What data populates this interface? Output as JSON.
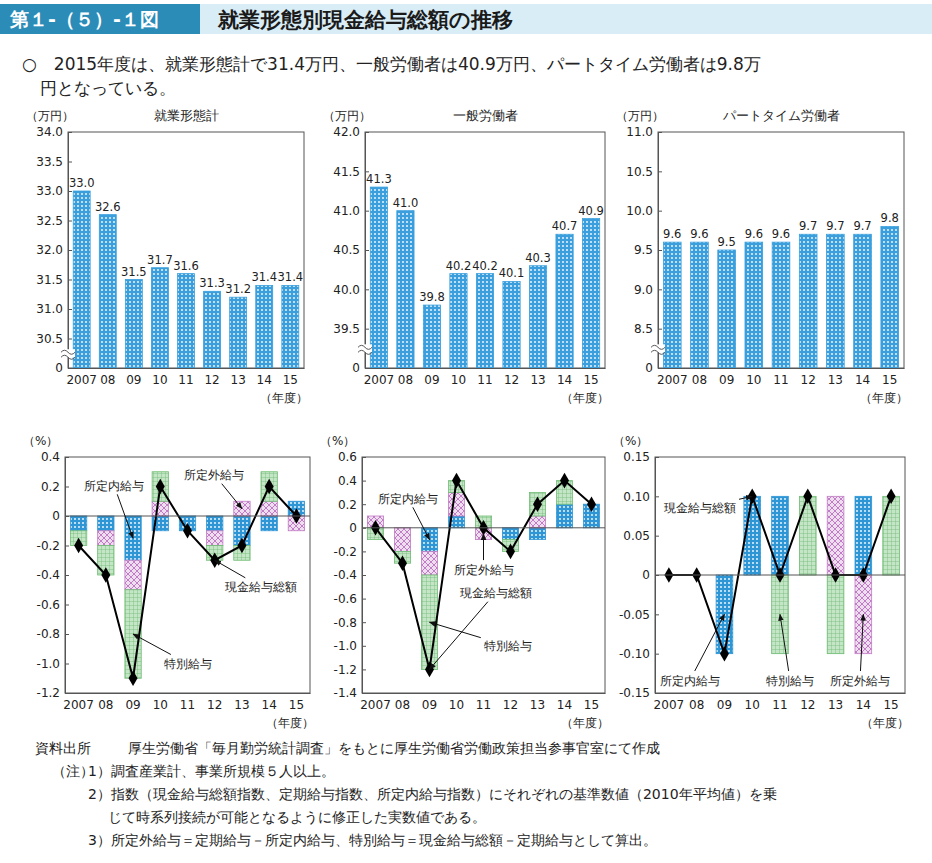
{
  "header": {
    "label": "第１-（５）-１図",
    "title": "就業形態別現金給与総額の推移",
    "summary": [
      "○　2015年度は、就業形態計で31.4万円、一般労働者は40.9万円、パートタイム労働者は9.8万",
      "円となっている。"
    ]
  },
  "chart_data": [
    {
      "type": "bar",
      "title": "就業形態計",
      "y_label": "（万円）",
      "x_label": "（年度）",
      "categories": [
        "2007",
        "08",
        "09",
        "10",
        "11",
        "12",
        "13",
        "14",
        "15"
      ],
      "values": [
        33.0,
        32.6,
        31.5,
        31.7,
        31.6,
        31.3,
        31.2,
        31.4,
        31.4
      ],
      "value_labels": [
        "33.0",
        "32.6",
        "31.5",
        "31.7",
        "31.6",
        "31.3",
        "31.2",
        "31.4",
        "31.4"
      ],
      "data_labels": true,
      "color": "#3a9fdc",
      "ylim": [
        0,
        34
      ],
      "yticks": [
        0,
        30.5,
        {
          "value": 31,
          "label": "31.0"
        },
        31.5,
        {
          "value": 32,
          "label": "32.0"
        },
        32.5,
        {
          "value": 33,
          "label": "33.0"
        },
        33.5,
        {
          "value": 34,
          "label": "34.0"
        }
      ]
    },
    {
      "type": "bar",
      "title": "一般労働者",
      "y_label": "（万円）",
      "x_label": "（年度）",
      "categories": [
        "2007",
        "08",
        "09",
        "10",
        "11",
        "12",
        "13",
        "14",
        "15"
      ],
      "values": [
        41.3,
        41.0,
        39.8,
        40.2,
        40.2,
        40.1,
        40.3,
        40.7,
        40.9
      ],
      "value_labels": [
        "41.3",
        "41.0",
        "39.8",
        "40.2",
        "40.2",
        "40.1",
        "40.3",
        "40.7",
        "40.9"
      ],
      "data_labels": true,
      "color": "#3a9fdc",
      "ylim": [
        0,
        42
      ],
      "yticks": [
        0,
        39.5,
        {
          "value": 40,
          "label": "40.0"
        },
        40.5,
        {
          "value": 41,
          "label": "41.0"
        },
        41.5,
        {
          "value": 42,
          "label": "42.0"
        }
      ]
    },
    {
      "type": "bar",
      "title": "パートタイム労働者",
      "y_label": "（万円）",
      "x_label": "（年度）",
      "categories": [
        "2007",
        "08",
        "09",
        "10",
        "11",
        "12",
        "13",
        "14",
        "15"
      ],
      "values": [
        9.6,
        9.6,
        9.5,
        9.6,
        9.6,
        9.7,
        9.7,
        9.7,
        9.8
      ],
      "value_labels": [
        "9.6",
        "9.6",
        "9.5",
        "9.6",
        "9.6",
        "9.7",
        "9.7",
        "9.7",
        "9.8"
      ],
      "data_labels": true,
      "color": "#3a9fdc",
      "ylim": [
        0,
        11
      ],
      "yticks": [
        0,
        8.5,
        {
          "value": 9,
          "label": "9.0"
        },
        9.5,
        {
          "value": 10,
          "label": "10.0"
        },
        10.5,
        {
          "value": 11,
          "label": "11.0"
        }
      ]
    },
    {
      "type": "bar",
      "stacked": true,
      "y_label": "（%）",
      "x_label": "（年度）",
      "categories": [
        "2007",
        "08",
        "09",
        "10",
        "11",
        "12",
        "13",
        "14",
        "15"
      ],
      "ylim": [
        -1.2,
        0.4
      ],
      "yticks": [
        -1.2,
        {
          "value": -1,
          "label": "-1.0"
        },
        -0.8,
        -0.6,
        -0.4,
        -0.2,
        0,
        0.2,
        0.4
      ],
      "series": [
        {
          "name": "所定内給与",
          "color": "#2f96d6",
          "values": [
            -0.1,
            -0.1,
            -0.3,
            -0.1,
            -0.1,
            -0.1,
            -0.2,
            -0.1,
            0.1
          ]
        },
        {
          "name": "所定外給与",
          "color": "#c07cc4",
          "values": [
            0,
            -0.1,
            -0.2,
            0.1,
            0,
            -0.1,
            0.1,
            0.1,
            -0.1
          ]
        },
        {
          "name": "特別給与",
          "color": "#6fbd73",
          "values": [
            -0.1,
            -0.2,
            -0.6,
            0.2,
            0,
            -0.1,
            -0.1,
            0.2,
            0
          ]
        },
        {
          "name": "現金給与総額",
          "type": "line",
          "color": "#000000",
          "marker": "diamond",
          "values": [
            -0.2,
            -0.4,
            -1.1,
            0.2,
            -0.1,
            -0.3,
            -0.2,
            0.2,
            0
          ]
        }
      ]
    },
    {
      "type": "bar",
      "stacked": true,
      "y_label": "（%）",
      "x_label": "（年度）",
      "categories": [
        "2007",
        "08",
        "09",
        "10",
        "11",
        "12",
        "13",
        "14",
        "15"
      ],
      "ylim": [
        -1.4,
        0.6
      ],
      "yticks": [
        -1.4,
        -1.2,
        {
          "value": -1,
          "label": "-1.0"
        },
        -0.8,
        -0.6,
        -0.4,
        -0.2,
        0,
        0.2,
        0.4,
        0.6
      ],
      "series": [
        {
          "name": "所定内給与",
          "color": "#2f96d6",
          "values": [
            0,
            0,
            -0.2,
            0.1,
            0,
            -0.1,
            -0.1,
            0.2,
            0.2
          ]
        },
        {
          "name": "所定外給与",
          "color": "#c07cc4",
          "values": [
            0.1,
            -0.2,
            -0.2,
            0.2,
            -0.1,
            0,
            0.1,
            0,
            0
          ]
        },
        {
          "name": "特別給与",
          "color": "#6fbd73",
          "values": [
            -0.1,
            -0.1,
            -0.8,
            0.1,
            0.1,
            -0.1,
            0.2,
            0.2,
            0
          ]
        },
        {
          "name": "現金給与総額",
          "type": "line",
          "color": "#000000",
          "marker": "diamond",
          "values": [
            0,
            -0.3,
            -1.2,
            0.4,
            0,
            -0.2,
            0.2,
            0.4,
            0.2
          ]
        }
      ]
    },
    {
      "type": "bar",
      "stacked": true,
      "y_label": "（%）",
      "x_label": "（年度）",
      "categories": [
        "2007",
        "08",
        "09",
        "10",
        "11",
        "12",
        "13",
        "14",
        "15"
      ],
      "ylim": [
        -0.15,
        0.15
      ],
      "yticks": [
        -0.15,
        {
          "value": -0.1,
          "label": "-0.10"
        },
        -0.05,
        0,
        0.05,
        {
          "value": 0.1,
          "label": "0.10"
        },
        0.15
      ],
      "series": [
        {
          "name": "所定内給与",
          "color": "#2f96d6",
          "values": [
            0,
            0,
            -0.1,
            0.1,
            0.1,
            0,
            0,
            0.1,
            0
          ]
        },
        {
          "name": "所定外給与",
          "color": "#c07cc4",
          "values": [
            0,
            0,
            0,
            0,
            0,
            0,
            0.1,
            -0.1,
            0
          ]
        },
        {
          "name": "特別給与",
          "color": "#6fbd73",
          "values": [
            0,
            0,
            0,
            0,
            -0.1,
            0.1,
            -0.1,
            0,
            0.1
          ]
        },
        {
          "name": "現金給与総額",
          "type": "line",
          "color": "#000000",
          "marker": "diamond",
          "values": [
            0,
            0,
            -0.1,
            0.1,
            0,
            0.1,
            0,
            0,
            0.1
          ]
        }
      ]
    }
  ],
  "notes": {
    "source_label": "資料出所",
    "source": "厚生労働省「毎月勤労統計調査」をもとに厚生労働省労働政策担当参事官室にて作成",
    "note_label": "（注）",
    "items": [
      [
        "1）調査産業計、事業所規模５人以上。"
      ],
      [
        "2）指数（現金給与総額指数、定期給与指数、所定内給与指数）にそれぞれの基準数値（2010年平均値）を乗",
        "じて時系列接続が可能となるように修正した実数値である。"
      ],
      [
        "3）所定外給与＝定期給与－所定内給与、特別給与＝現金給与総額－定期給与として算出。"
      ]
    ]
  }
}
